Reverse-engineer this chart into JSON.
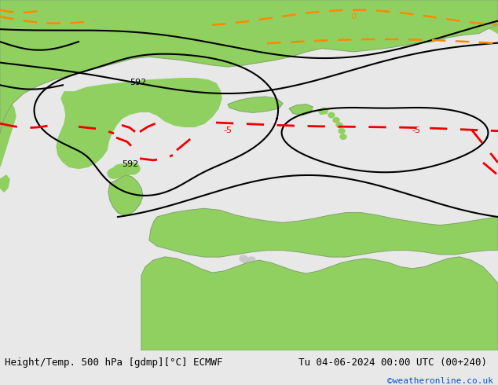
{
  "title_left": "Height/Temp. 500 hPa [gdmp][°C] ECMWF",
  "title_right": "Tu 04-06-2024 00:00 UTC (00+240)",
  "credit": "©weatheronline.co.uk",
  "fig_width": 6.34,
  "fig_height": 4.9,
  "dpi": 100,
  "bg_color": "#e8e8e8",
  "land_green": "#90d060",
  "land_gray": "#c8c8c8",
  "bottom_bar_color": "#d8d8d8",
  "bottom_bar_height": 0.09,
  "title_fontsize": 9,
  "credit_fontsize": 8,
  "credit_color": "#0055cc",
  "contour_black": "#000000",
  "contour_red": "#ee0000",
  "contour_orange": "#ff8800",
  "label_592_1": "592",
  "label_592_2": "592",
  "label_0": "0",
  "label_neg5_1": "-5",
  "label_neg5_2": "-5"
}
